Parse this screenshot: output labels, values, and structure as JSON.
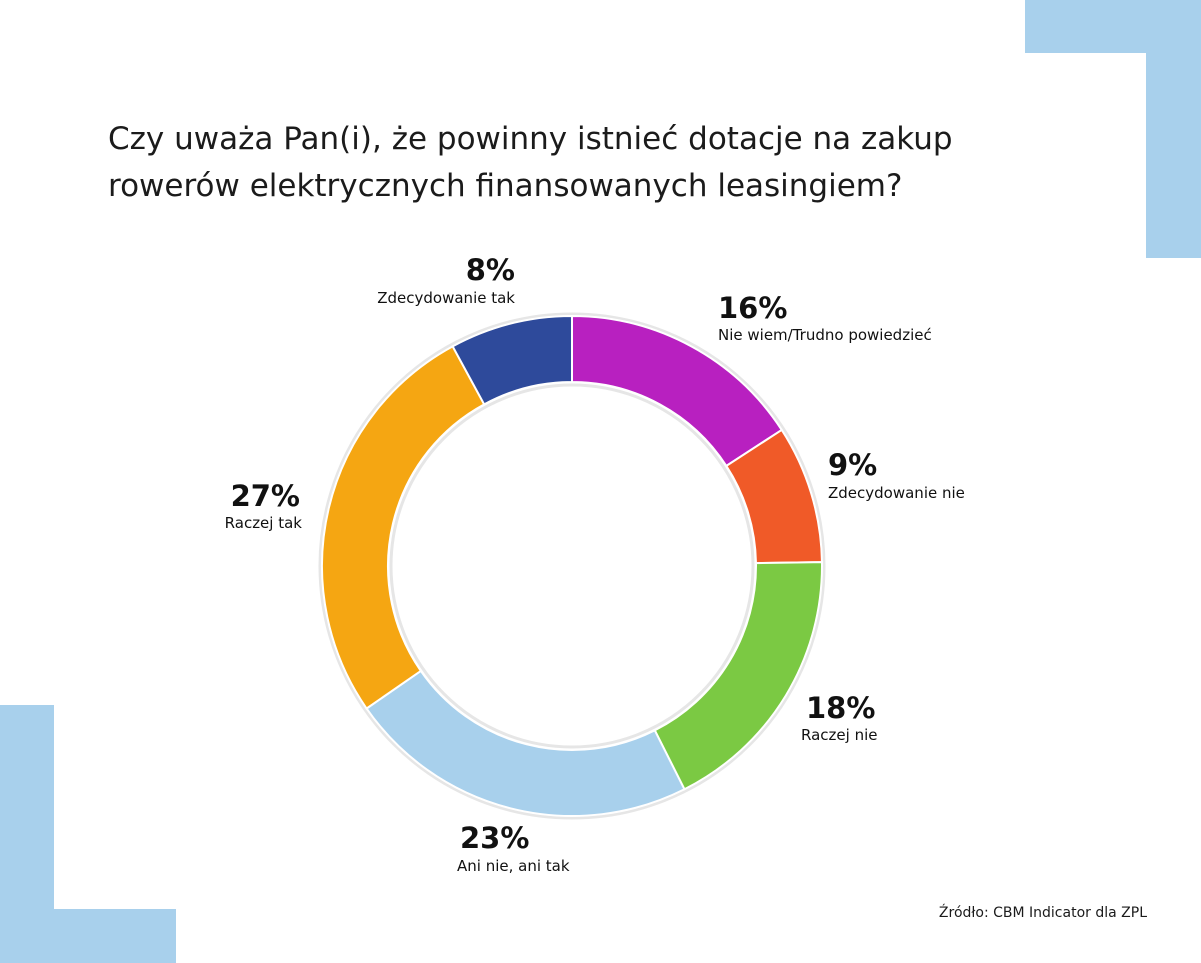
{
  "title_lines": [
    "Czy uważa Pan(i), że powinny istnieć dotacje na zakup",
    "rowerów elektrycznych finansowanych leasingiem?"
  ],
  "source": "Źródło: CBM Indicator dla ZPL",
  "colors": {
    "accent": "#a8d0ec",
    "ring_outline": "#e6e6e6"
  },
  "chart_data": {
    "type": "pie",
    "variant": "donut",
    "title": "Czy uważa Pan(i), że powinny istnieć dotacje na zakup rowerów elektrycznych finansowanych leasingiem?",
    "unit": "%",
    "slices": [
      {
        "label": "Nie wiem/Trudno powiedzieć",
        "value": 16,
        "value_label": "16%",
        "color": "#b820c0"
      },
      {
        "label": "Zdecydowanie nie",
        "value": 9,
        "value_label": "9%",
        "color": "#f05a28"
      },
      {
        "label": "Raczej nie",
        "value": 18,
        "value_label": "18%",
        "color": "#7bc943"
      },
      {
        "label": "Ani nie, ani tak",
        "value": 23,
        "value_label": "23%",
        "color": "#a8d0ec"
      },
      {
        "label": "Raczej tak",
        "value": 27,
        "value_label": "27%",
        "color": "#f5a612"
      },
      {
        "label": "Zdecydowanie tak",
        "value": 8,
        "value_label": "8%",
        "color": "#2e4a9b"
      }
    ],
    "start": "top",
    "direction": "clockwise"
  }
}
